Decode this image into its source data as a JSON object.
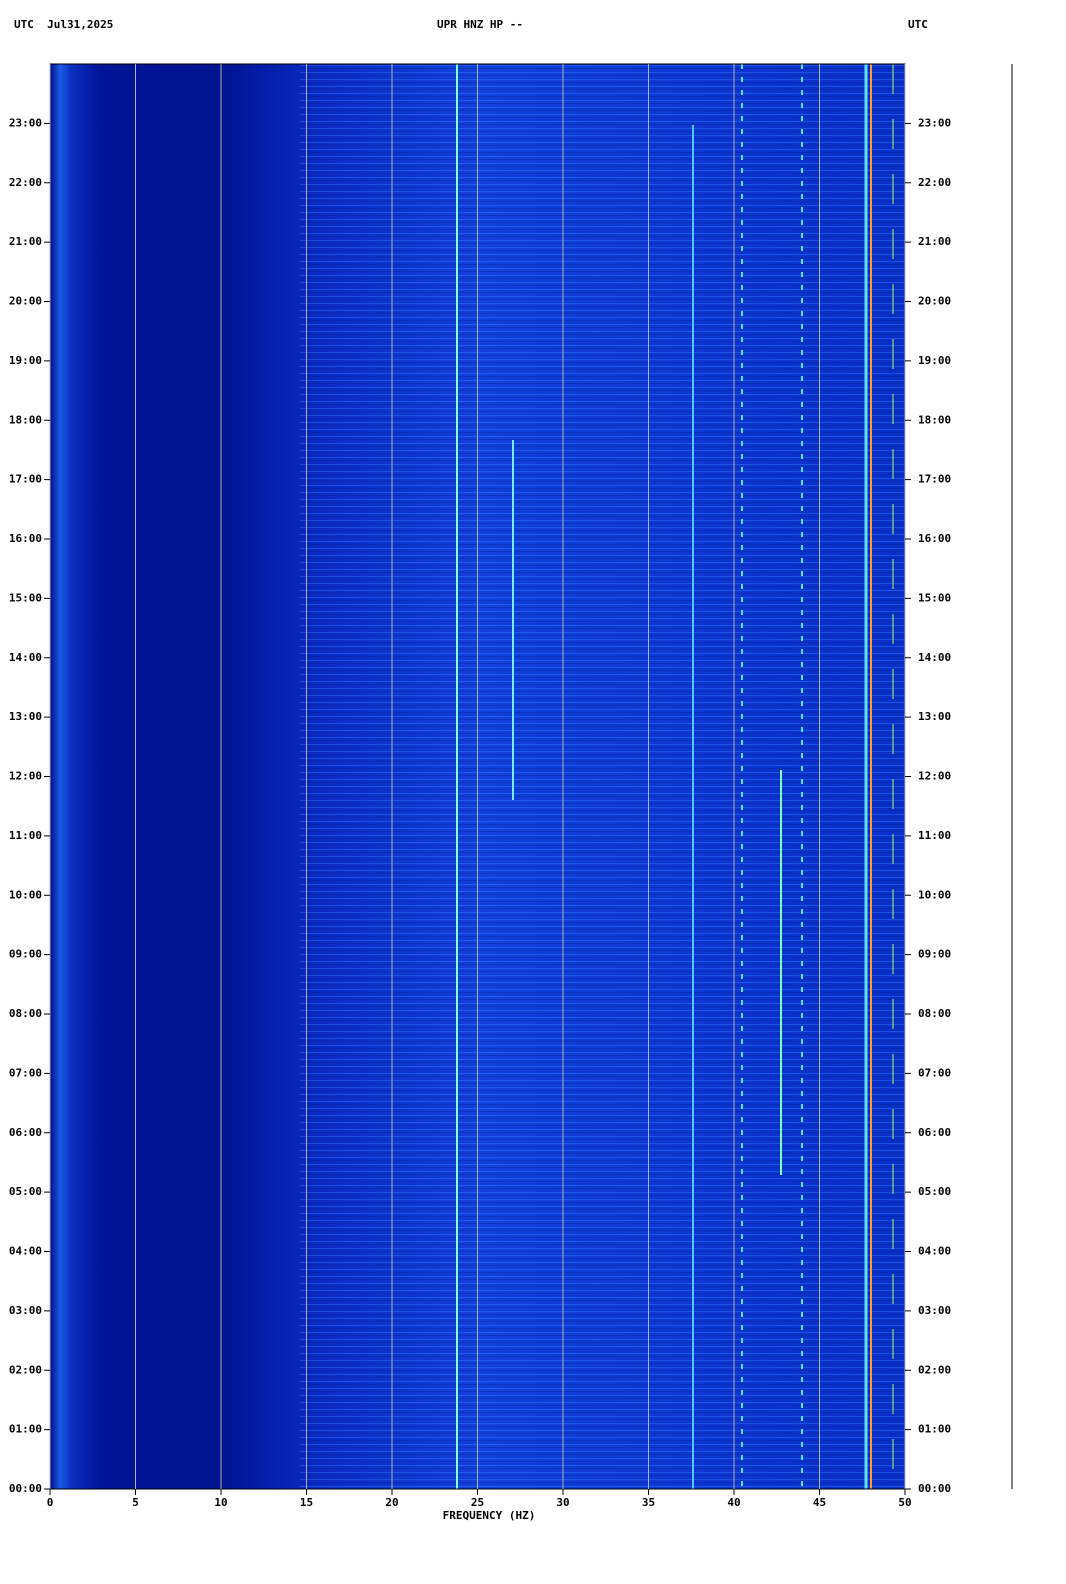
{
  "chart_data": {
    "type": "spectrogram",
    "title": "UPR HNZ HP --",
    "header_left": "UTC  Jul31,2025",
    "header_right": "UTC",
    "x_label": "FREQUENCY (HZ)",
    "xlim": [
      0,
      50
    ],
    "xticks": [
      0,
      5,
      10,
      15,
      20,
      25,
      30,
      35,
      40,
      45,
      50
    ],
    "ylim": [
      0,
      24
    ],
    "yticks": [
      {
        "value": 0,
        "label": "00:00"
      },
      {
        "value": 1,
        "label": "01:00"
      },
      {
        "value": 2,
        "label": "02:00"
      },
      {
        "value": 3,
        "label": "03:00"
      },
      {
        "value": 4,
        "label": "04:00"
      },
      {
        "value": 5,
        "label": "05:00"
      },
      {
        "value": 6,
        "label": "06:00"
      },
      {
        "value": 7,
        "label": "07:00"
      },
      {
        "value": 8,
        "label": "08:00"
      },
      {
        "value": 9,
        "label": "09:00"
      },
      {
        "value": 10,
        "label": "10:00"
      },
      {
        "value": 11,
        "label": "11:00"
      },
      {
        "value": 12,
        "label": "12:00"
      },
      {
        "value": 13,
        "label": "13:00"
      },
      {
        "value": 14,
        "label": "14:00"
      },
      {
        "value": 15,
        "label": "15:00"
      },
      {
        "value": 16,
        "label": "16:00"
      },
      {
        "value": 17,
        "label": "17:00"
      },
      {
        "value": 18,
        "label": "18:00"
      },
      {
        "value": 19,
        "label": "19:00"
      },
      {
        "value": 20,
        "label": "20:00"
      },
      {
        "value": 21,
        "label": "21:00"
      },
      {
        "value": 22,
        "label": "22:00"
      },
      {
        "value": 23,
        "label": "23:00"
      }
    ],
    "grid": true
  }
}
